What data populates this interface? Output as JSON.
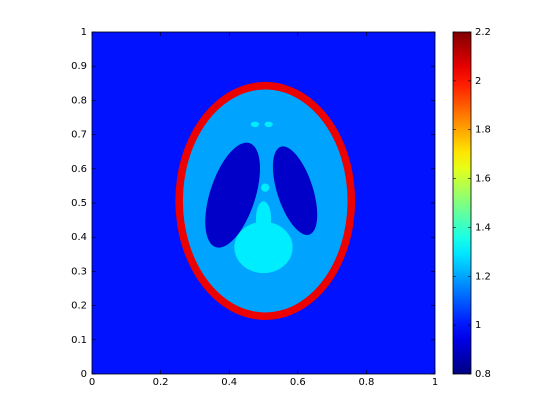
{
  "chart_data": {
    "type": "image",
    "colormap": "jet",
    "background": 1.0,
    "ellipses": [
      {
        "cx": 0.505,
        "cy": 0.506,
        "rx": 0.262,
        "ry": 0.348,
        "angle": 0,
        "value": 2.05
      },
      {
        "cx": 0.505,
        "cy": 0.506,
        "rx": 0.24,
        "ry": 0.326,
        "angle": 0,
        "value": 1.2
      },
      {
        "cx": 0.41,
        "cy": 0.523,
        "rx": 0.066,
        "ry": 0.16,
        "angle": 18,
        "value": 0.9
      },
      {
        "cx": 0.592,
        "cy": 0.536,
        "rx": 0.052,
        "ry": 0.135,
        "angle": -18,
        "value": 0.9
      },
      {
        "cx": 0.5,
        "cy": 0.37,
        "rx": 0.085,
        "ry": 0.075,
        "angle": 0,
        "value": 1.3
      },
      {
        "cx": 0.5,
        "cy": 0.455,
        "rx": 0.022,
        "ry": 0.05,
        "angle": 0,
        "value": 1.3
      },
      {
        "cx": 0.505,
        "cy": 0.545,
        "rx": 0.012,
        "ry": 0.012,
        "angle": 0,
        "value": 1.3
      },
      {
        "cx": 0.475,
        "cy": 0.73,
        "rx": 0.012,
        "ry": 0.008,
        "angle": 0,
        "value": 1.3
      },
      {
        "cx": 0.515,
        "cy": 0.73,
        "rx": 0.012,
        "ry": 0.008,
        "angle": 0,
        "value": 1.3
      }
    ],
    "xlim": [
      0,
      1
    ],
    "xticks": [
      0,
      0.2,
      0.4,
      0.6,
      0.8,
      1
    ],
    "ylim": [
      0,
      1
    ],
    "yticks": [
      0,
      0.1,
      0.2,
      0.3,
      0.4,
      0.5,
      0.6,
      0.7,
      0.8,
      0.9,
      1
    ],
    "clim": [
      0.8,
      2.2
    ],
    "cticks": [
      0.8,
      1,
      1.2,
      1.4,
      1.6,
      1.8,
      2,
      2.2
    ]
  }
}
